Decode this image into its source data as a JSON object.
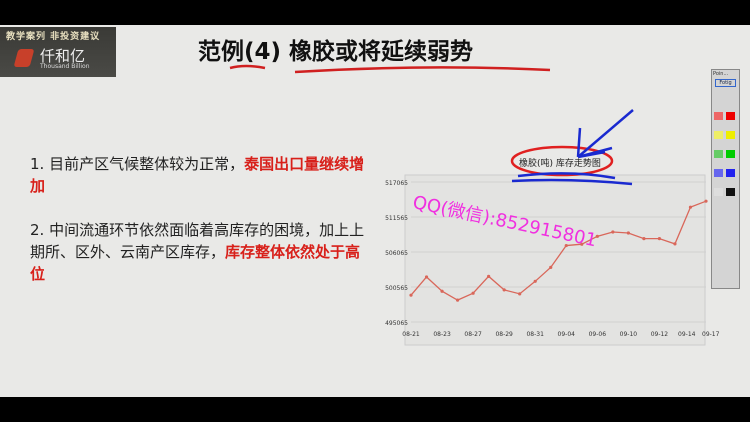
{
  "logo": {
    "banner": "教学案列 非投资建议",
    "name": "仟和亿",
    "name_en": "Thousand Billion"
  },
  "title": "范例(4) 橡胶或将延续弱势",
  "bullets": [
    {
      "plain": "1. 目前产区气候整体较为正常，",
      "highlight": "泰国出口量继续增加"
    },
    {
      "plain": "2. 中间流通环节依然面临着高库存的困境，加上上期所、区外、云南产区库存，",
      "highlight": "库存整体依然处于高位"
    }
  ],
  "watermark": "QQ(微信):852915801",
  "toolbar": {
    "title": "Poin...",
    "button": "Fotig"
  },
  "annotation_colors": {
    "circle": "#e02020",
    "arrow": "#1a2ad0",
    "watermark": "#f030e0"
  },
  "chart_data": {
    "type": "line",
    "title": "橡胶(吨) 库存走势图",
    "yticks": [
      495065,
      500565,
      506065,
      511565,
      517065
    ],
    "ylim": [
      495065,
      517065
    ],
    "xtick_labels": [
      "08-21",
      "08-23",
      "08-27",
      "08-29",
      "08-31",
      "09-04",
      "09-06",
      "09-10",
      "09-12",
      "09-14",
      "09-17"
    ],
    "xtick_index": [
      0,
      2,
      4,
      6,
      8,
      10,
      12,
      14,
      16,
      18,
      19
    ],
    "values": [
      499280,
      502140,
      499900,
      498500,
      499590,
      502240,
      500110,
      499490,
      501460,
      503650,
      507080,
      507290,
      508530,
      509210,
      509050,
      508170,
      508170,
      507340,
      513110,
      514050
    ],
    "color": "#d9675a",
    "grid": true
  }
}
